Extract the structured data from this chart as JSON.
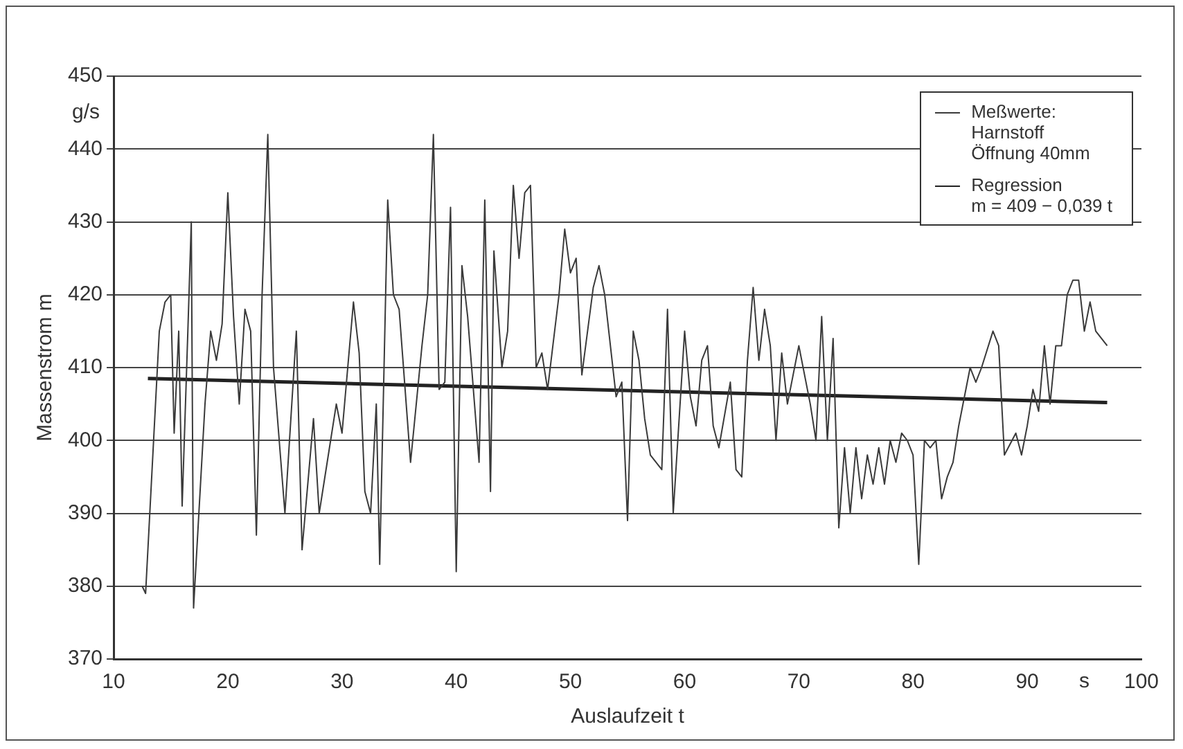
{
  "chart_data": {
    "type": "line",
    "xlabel": "Auslaufzeit t",
    "ylabel": "Massenstrom m",
    "annotations": [
      "g/s",
      "s"
    ],
    "xlim": [
      10,
      100
    ],
    "xticks": [
      10,
      20,
      30,
      40,
      50,
      60,
      70,
      80,
      90,
      100
    ],
    "ylim": [
      370,
      450
    ],
    "yticks": [
      370,
      380,
      390,
      400,
      410,
      420,
      430,
      440,
      450
    ],
    "grid": "y",
    "legend": "top right",
    "marker": "none",
    "line_style": "solid",
    "series": [
      {
        "name": "Meßwerte:\nHarnstoff\nÖffnung 40mm",
        "color": "#3a3a3a",
        "x": [
          12.5,
          12.8,
          14,
          14.5,
          15,
          15.3,
          15.7,
          16,
          16.5,
          16.8,
          17,
          18,
          18.5,
          19,
          19.5,
          20,
          20.5,
          21,
          21.5,
          22,
          22.5,
          23,
          23.5,
          24,
          25,
          26,
          26.5,
          27.5,
          28,
          29,
          29.5,
          30,
          31,
          31.5,
          32,
          32.5,
          33,
          33.3,
          34,
          34.5,
          35,
          36,
          37,
          37.5,
          38,
          38.5,
          39,
          39.5,
          40,
          40.5,
          41,
          42,
          42.5,
          43,
          43.3,
          44,
          44.5,
          45,
          45.5,
          46,
          46.5,
          47,
          47.5,
          48,
          49,
          49.5,
          50,
          50.5,
          51,
          52,
          52.5,
          53,
          54,
          54.5,
          55,
          55.5,
          56,
          56.5,
          57,
          58,
          58.5,
          59,
          60,
          60.5,
          61,
          61.5,
          62,
          62.5,
          63,
          64,
          64.5,
          65,
          65.5,
          66,
          66.5,
          67,
          67.5,
          68,
          68.5,
          69,
          70,
          71,
          71.5,
          72,
          72.5,
          73,
          73.5,
          74,
          74.5,
          75,
          75.5,
          76,
          76.5,
          77,
          77.5,
          78,
          78.5,
          79,
          79.5,
          80,
          80.5,
          81,
          81.5,
          82,
          82.5,
          83,
          83.5,
          84,
          85,
          85.5,
          86,
          87,
          87.5,
          88,
          89,
          89.5,
          90,
          90.5,
          91,
          91.5,
          92,
          92.5,
          93,
          93.5,
          94,
          94.5,
          95,
          95.5,
          96,
          96.5,
          97
        ],
        "values": [
          380,
          379,
          415,
          419,
          420,
          401,
          415,
          391,
          415,
          430,
          377,
          405,
          415,
          411,
          416,
          434,
          417,
          405,
          418,
          415,
          387,
          420,
          442,
          410,
          390,
          415,
          385,
          403,
          390,
          400,
          405,
          401,
          419,
          412,
          393,
          390,
          405,
          383,
          433,
          420,
          418,
          397,
          413,
          420,
          442,
          407,
          408,
          432,
          382,
          424,
          417,
          397,
          433,
          393,
          426,
          410,
          415,
          435,
          425,
          434,
          435,
          410,
          412,
          407,
          420,
          429,
          423,
          425,
          409,
          421,
          424,
          420,
          406,
          408,
          389,
          415,
          411,
          403,
          398,
          396,
          418,
          390,
          415,
          406,
          402,
          411,
          413,
          402,
          399,
          408,
          396,
          395,
          411,
          421,
          411,
          418,
          413,
          400,
          412,
          405,
          413,
          405,
          400,
          417,
          400,
          414,
          388,
          399,
          390,
          399,
          392,
          398,
          394,
          399,
          394,
          400,
          397,
          401,
          400,
          398,
          383,
          400,
          399,
          400,
          392,
          395,
          397,
          402,
          410,
          408,
          410,
          415,
          413,
          398,
          401,
          398,
          402,
          407,
          404,
          413,
          405,
          413,
          413,
          420,
          422,
          422,
          415,
          419,
          415,
          414,
          413
        ]
      },
      {
        "name": "Regression\nm = 409 − 0,039 t",
        "color": "#222222",
        "x": [
          13,
          97
        ],
        "values": [
          408.5,
          405.2
        ]
      }
    ]
  }
}
